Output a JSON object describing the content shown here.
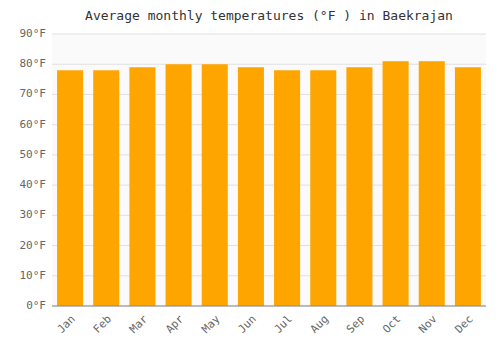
{
  "chart_data": {
    "type": "bar",
    "title": "Average monthly temperatures (°F ) in Baekrajan",
    "categories": [
      "Jan",
      "Feb",
      "Mar",
      "Apr",
      "May",
      "Jun",
      "Jul",
      "Aug",
      "Sep",
      "Oct",
      "Nov",
      "Dec"
    ],
    "values": [
      78,
      78,
      79,
      80,
      80,
      79,
      78,
      78,
      79,
      81,
      81,
      79
    ],
    "color": "#FFA500",
    "ylim": [
      0,
      90
    ],
    "yticks": [
      {
        "value": 0,
        "label": "0°F"
      },
      {
        "value": 10,
        "label": "10°F"
      },
      {
        "value": 20,
        "label": "20°F"
      },
      {
        "value": 30,
        "label": "30°F"
      },
      {
        "value": 40,
        "label": "40°F"
      },
      {
        "value": 50,
        "label": "50°F"
      },
      {
        "value": 60,
        "label": "60°F"
      },
      {
        "value": 70,
        "label": "70°F"
      },
      {
        "value": 80,
        "label": "80°F"
      },
      {
        "value": 90,
        "label": "90°F"
      }
    ],
    "grid": true
  }
}
